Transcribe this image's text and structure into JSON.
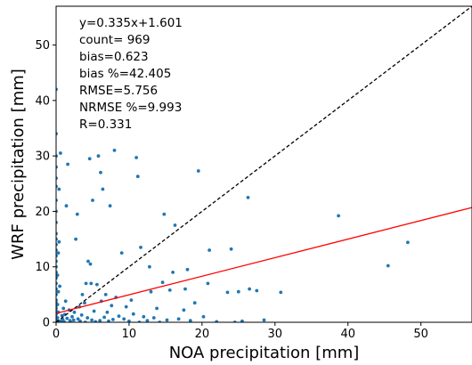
{
  "chart_data": {
    "type": "scatter",
    "xlabel": "NOA precipitation [mm]",
    "ylabel": "WRF precipitation [mm]",
    "xlim": [
      0,
      57
    ],
    "ylim": [
      0,
      57
    ],
    "xticks": [
      0,
      10,
      20,
      30,
      40,
      50
    ],
    "yticks": [
      0,
      10,
      20,
      30,
      40,
      50
    ],
    "grid": false,
    "stats": [
      "y=0.335x+1.601",
      "count= 969",
      "bias=0.623",
      "bias %=42.405",
      "RMSE=5.756",
      "NRMSE %=9.993",
      "R=0.331"
    ],
    "regression_line": {
      "slope": 0.335,
      "intercept": 1.601,
      "color": "#ff0000"
    },
    "identity_line": {
      "slope": 1,
      "intercept": 0,
      "color": "#000000",
      "style": "dashed"
    },
    "point_color": "#1f77b4",
    "points": [
      [
        0,
        0
      ],
      [
        0,
        0.5
      ],
      [
        0,
        1
      ],
      [
        0,
        1.5
      ],
      [
        0,
        2
      ],
      [
        0,
        2.5
      ],
      [
        0,
        3
      ],
      [
        0,
        3.5
      ],
      [
        0,
        4
      ],
      [
        0,
        5
      ],
      [
        0,
        6
      ],
      [
        0,
        7
      ],
      [
        0,
        8
      ],
      [
        0,
        9
      ],
      [
        0,
        10
      ],
      [
        0,
        11
      ],
      [
        0,
        12
      ],
      [
        0,
        13
      ],
      [
        0,
        14
      ],
      [
        0,
        15
      ],
      [
        0,
        16
      ],
      [
        0,
        18
      ],
      [
        0,
        20
      ],
      [
        0,
        22
      ],
      [
        0,
        24.5
      ],
      [
        0,
        26
      ],
      [
        0,
        28
      ],
      [
        0,
        30
      ],
      [
        0,
        34
      ],
      [
        0,
        42
      ],
      [
        0.1,
        0.3
      ],
      [
        0.2,
        0.8
      ],
      [
        0.3,
        1.8
      ],
      [
        0.2,
        3.2
      ],
      [
        0.3,
        5.5
      ],
      [
        0.2,
        8.5
      ],
      [
        0.3,
        12.5
      ],
      [
        0.4,
        14.5
      ],
      [
        0.5,
        0.2
      ],
      [
        0.5,
        6.5
      ],
      [
        0.6,
        30.5
      ],
      [
        0.4,
        24
      ],
      [
        0.7,
        0
      ],
      [
        0.8,
        1.2
      ],
      [
        0.9,
        0.5
      ],
      [
        1,
        2.5
      ],
      [
        1.1,
        0.1
      ],
      [
        1.2,
        1.4
      ],
      [
        1.3,
        3.8
      ],
      [
        1.5,
        0.7
      ],
      [
        1.4,
        21
      ],
      [
        1.6,
        28.5
      ],
      [
        1.8,
        2.2
      ],
      [
        1.9,
        0.3
      ],
      [
        2,
        0
      ],
      [
        2.2,
        1
      ],
      [
        2.4,
        0.4
      ],
      [
        2.5,
        1.8
      ],
      [
        2.7,
        15
      ],
      [
        2.9,
        19.5
      ],
      [
        3,
        0.6
      ],
      [
        3.2,
        2.8
      ],
      [
        3.3,
        0.2
      ],
      [
        3.5,
        1.3
      ],
      [
        3.6,
        5
      ],
      [
        3.9,
        3.5
      ],
      [
        4,
        0
      ],
      [
        4.1,
        7
      ],
      [
        4.3,
        0.8
      ],
      [
        4.4,
        11
      ],
      [
        4.6,
        29.5
      ],
      [
        4.7,
        10.5
      ],
      [
        4.8,
        7
      ],
      [
        4.9,
        0.4
      ],
      [
        5,
        22
      ],
      [
        5.2,
        2
      ],
      [
        5.4,
        0.1
      ],
      [
        5.6,
        6.8
      ],
      [
        5.8,
        30
      ],
      [
        6,
        0.3
      ],
      [
        6.1,
        27
      ],
      [
        6.2,
        3.8
      ],
      [
        6.4,
        24
      ],
      [
        6.6,
        0.9
      ],
      [
        6.8,
        5
      ],
      [
        7,
        1.8
      ],
      [
        7.2,
        0.2
      ],
      [
        7.4,
        21
      ],
      [
        7.6,
        3
      ],
      [
        7.8,
        0.5
      ],
      [
        8,
        31
      ],
      [
        8.2,
        4.5
      ],
      [
        8.6,
        1.1
      ],
      [
        9,
        12.5
      ],
      [
        9.3,
        0.6
      ],
      [
        9.6,
        2.8
      ],
      [
        10,
        0.2
      ],
      [
        10.3,
        4
      ],
      [
        10.6,
        1.5
      ],
      [
        11,
        29.7
      ],
      [
        11.2,
        26.3
      ],
      [
        11.4,
        0
      ],
      [
        11.6,
        13.5
      ],
      [
        12,
        1
      ],
      [
        12.5,
        0.3
      ],
      [
        12.8,
        10
      ],
      [
        13,
        5.5
      ],
      [
        13.4,
        0.8
      ],
      [
        13.8,
        2.5
      ],
      [
        14.2,
        0
      ],
      [
        14.6,
        7.2
      ],
      [
        14.8,
        19.5
      ],
      [
        15.2,
        0.4
      ],
      [
        15.6,
        5.8
      ],
      [
        16,
        9
      ],
      [
        16.3,
        17.5
      ],
      [
        16.8,
        0.6
      ],
      [
        17.5,
        2.2
      ],
      [
        17.7,
        6
      ],
      [
        18,
        9.5
      ],
      [
        18.4,
        0.3
      ],
      [
        19.5,
        27.3
      ],
      [
        19,
        3.5
      ],
      [
        20.2,
        1
      ],
      [
        20.8,
        7
      ],
      [
        21,
        13
      ],
      [
        22,
        0.1
      ],
      [
        23.5,
        5.4
      ],
      [
        24,
        13.2
      ],
      [
        24.5,
        0
      ],
      [
        25,
        5.5
      ],
      [
        25.5,
        0.2
      ],
      [
        26.3,
        22.5
      ],
      [
        26.5,
        6
      ],
      [
        27.5,
        5.7
      ],
      [
        28.5,
        0.4
      ],
      [
        30.8,
        5.4
      ],
      [
        38.7,
        19.2
      ],
      [
        45.5,
        10.2
      ],
      [
        48.2,
        14.4
      ]
    ]
  }
}
